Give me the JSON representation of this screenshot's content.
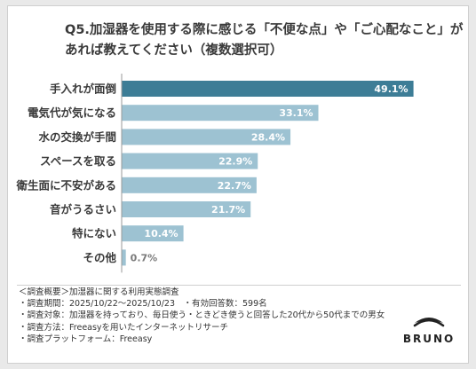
{
  "title": {
    "line1": "Q5.加湿器を使用する際に感じる「不便な点」や「ご心配なこと」が",
    "line2": "あれば教えてください（複数選択可）"
  },
  "chart_data": {
    "type": "bar",
    "orientation": "horizontal",
    "categories": [
      "手入れが面倒",
      "電気代が気になる",
      "水の交換が手間",
      "スペースを取る",
      "衛生面に不安がある",
      "音がうるさい",
      "特にない",
      "その他"
    ],
    "values": [
      49.1,
      33.1,
      28.4,
      22.9,
      22.7,
      21.7,
      10.4,
      0.7
    ],
    "value_labels": [
      "49.1%",
      "33.1%",
      "28.4%",
      "22.9%",
      "22.7%",
      "21.7%",
      "10.4%",
      "0.7%"
    ],
    "xlim": [
      0,
      52
    ],
    "grid": false,
    "colors": {
      "top_bar": "#3d7d96",
      "bar": "#9dc2d2",
      "axis": "#9a9a9a"
    }
  },
  "notes": [
    "＜調査概要＞加湿器に関する利用実態調査",
    "・調査期間：2025/10/22～2025/10/23　・有効回答数：599名",
    "・調査対象：加湿器を持っており、毎日使う・ときどき使うと回答した20代から50代までの男女",
    "・調査方法：Freeasyを用いたインターネットリサーチ",
    "・調査プラットフォーム：Freeasy"
  ],
  "logo": {
    "text": "BRUNO"
  }
}
